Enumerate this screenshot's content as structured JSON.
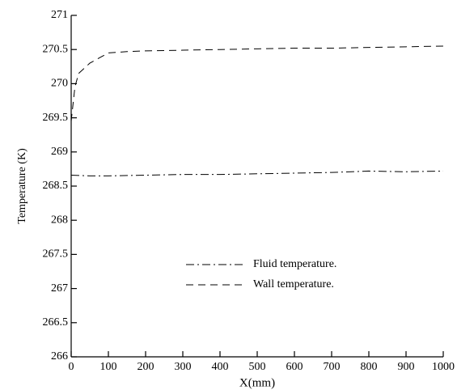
{
  "chart_data": {
    "type": "line",
    "xlabel": "X(mm)",
    "ylabel": "Temperature (K)",
    "xlim": [
      0,
      1000
    ],
    "xticks": [
      0,
      100,
      200,
      300,
      400,
      500,
      600,
      700,
      800,
      900,
      1000
    ],
    "ylim": [
      266,
      271
    ],
    "yticks": [
      266,
      266.5,
      267,
      267.5,
      268,
      268.5,
      269,
      269.5,
      270,
      270.5,
      271
    ],
    "legend": "center",
    "grid": false,
    "series": [
      {
        "name": "Fluid temperature.",
        "color": "#000000",
        "dash": "dashdot",
        "x": [
          0,
          50,
          100,
          200,
          300,
          400,
          500,
          600,
          700,
          800,
          900,
          1000
        ],
        "values": [
          268.66,
          268.65,
          268.65,
          268.66,
          268.67,
          268.67,
          268.68,
          268.69,
          268.7,
          268.72,
          268.71,
          268.72
        ]
      },
      {
        "name": "Wall temperature.",
        "color": "#000000",
        "dash": "dashed",
        "x": [
          0,
          5,
          10,
          20,
          50,
          100,
          150,
          200,
          300,
          400,
          500,
          600,
          700,
          800,
          900,
          1000
        ],
        "values": [
          269.45,
          269.7,
          269.95,
          270.15,
          270.3,
          270.45,
          270.47,
          270.48,
          270.49,
          270.5,
          270.51,
          270.52,
          270.52,
          270.53,
          270.54,
          270.55
        ]
      }
    ]
  }
}
